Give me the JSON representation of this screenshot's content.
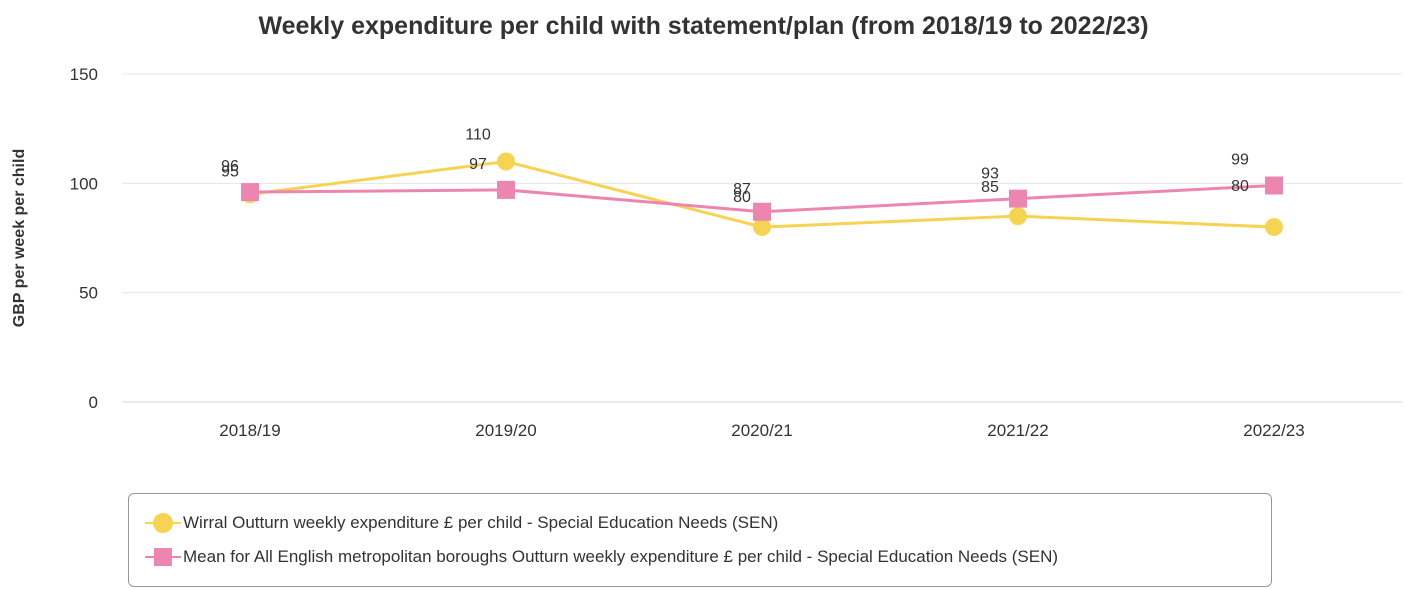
{
  "chart_data": {
    "type": "line",
    "title": "Weekly expenditure per child with statement/plan (from 2018/19 to 2022/23)",
    "ylabel": "GBP per week per child",
    "xlabel": "",
    "categories": [
      "2018/19",
      "2019/20",
      "2020/21",
      "2021/22",
      "2022/23"
    ],
    "ylim": [
      0,
      150
    ],
    "yticks": [
      0,
      50,
      100,
      150
    ],
    "grid": true,
    "legend_position": "bottom",
    "series": [
      {
        "name": "Wirral Outturn weekly expenditure £ per child - Special Education Needs (SEN)",
        "values": [
          95,
          110,
          80,
          85,
          80
        ],
        "labels": [
          "95",
          "110",
          "80",
          "85",
          "80"
        ],
        "color": "#f7d354",
        "marker": "circle"
      },
      {
        "name": "Mean for All English metropolitan boroughs Outturn weekly expenditure £ per child - Special Education Needs (SEN)",
        "values": [
          96,
          97,
          87,
          93,
          99
        ],
        "labels": [
          "96",
          "97",
          "87",
          "93",
          "99"
        ],
        "color": "#ec86b1",
        "marker": "square"
      }
    ]
  }
}
